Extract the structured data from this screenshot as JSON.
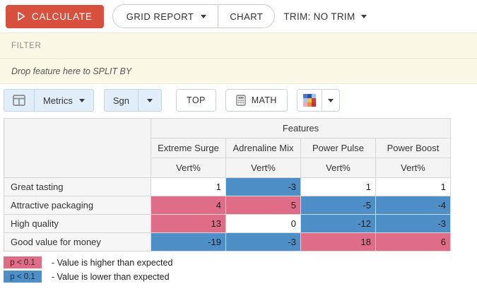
{
  "toolbar_top": {
    "calculate_label": "CALCULATE",
    "grid_report_label": "GRID REPORT",
    "chart_label": "CHART",
    "trim_label": "TRIM: NO TRIM"
  },
  "filter_bar": {
    "label": "FILTER"
  },
  "split_bar": {
    "placeholder": "Drop feature here to SPLIT BY"
  },
  "toolbar_metrics": {
    "metrics_label": "Metrics",
    "sgn_label": "Sgn",
    "top_label": "TOP",
    "math_label": "MATH"
  },
  "palette_colors": [
    "#4A78D0",
    "#2B50B4",
    "#9FC2EF",
    "#A9C6F0",
    "#F2C140",
    "#D63E3E",
    "#F2A9B8",
    "#EC8A3E",
    "#C23434"
  ],
  "table": {
    "group_header": "Features",
    "columns": [
      {
        "name": "Extreme Surge",
        "metric": "Vert%"
      },
      {
        "name": "Adrenaline Mix",
        "metric": "Vert%"
      },
      {
        "name": "Power Pulse",
        "metric": "Vert%"
      },
      {
        "name": "Power Boost",
        "metric": "Vert%"
      }
    ],
    "rows": [
      {
        "label": "Great tasting",
        "cells": [
          {
            "value": 1
          },
          {
            "value": -3,
            "sig": "lower"
          },
          {
            "value": 1
          },
          {
            "value": 1
          }
        ]
      },
      {
        "label": "Attractive packaging",
        "cells": [
          {
            "value": 4,
            "sig": "higher"
          },
          {
            "value": 5,
            "sig": "higher"
          },
          {
            "value": -5,
            "sig": "lower"
          },
          {
            "value": -4,
            "sig": "lower"
          }
        ]
      },
      {
        "label": "High quality",
        "cells": [
          {
            "value": 13,
            "sig": "higher"
          },
          {
            "value": 0
          },
          {
            "value": -12,
            "sig": "lower"
          },
          {
            "value": -3,
            "sig": "lower"
          }
        ]
      },
      {
        "label": "Good value for money",
        "cells": [
          {
            "value": -19,
            "sig": "lower"
          },
          {
            "value": -3,
            "sig": "lower"
          },
          {
            "value": 18,
            "sig": "higher"
          },
          {
            "value": 6,
            "sig": "higher"
          }
        ]
      }
    ]
  },
  "legend": [
    {
      "chip": "p < 0.1",
      "meaning": "- Value is higher than expected",
      "type": "higher"
    },
    {
      "chip": "p < 0.1",
      "meaning": "- Value is lower than expected",
      "type": "lower"
    }
  ],
  "colors": {
    "significant_higher": "#E06D88",
    "significant_lower": "#4E8FC7",
    "calculate_button": "#D8503E",
    "cream_bar": "#FCF8E6",
    "blue_button_bg": "#E2EFFB"
  }
}
